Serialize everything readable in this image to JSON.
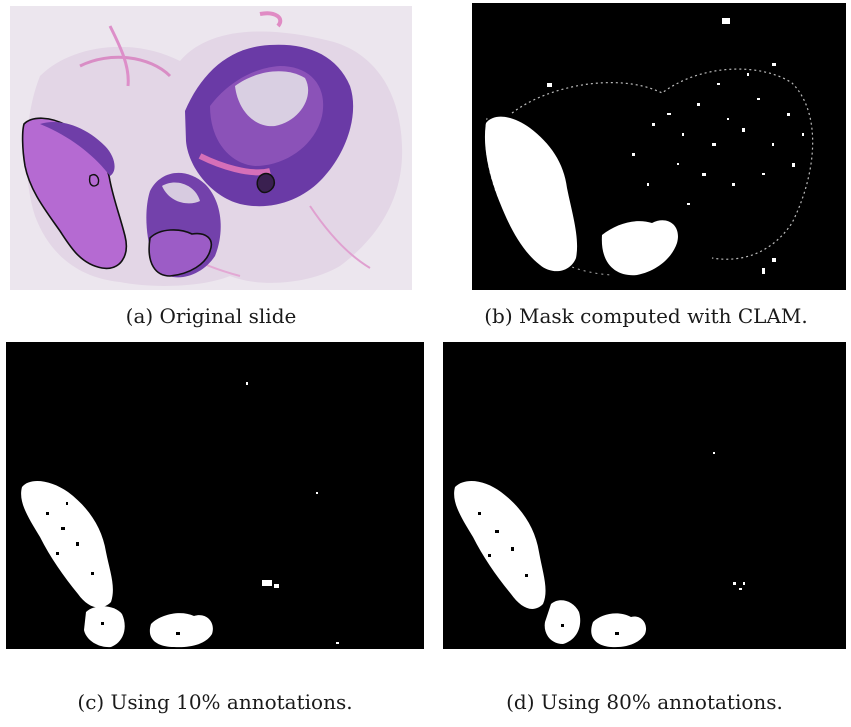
{
  "figure": {
    "panels": [
      {
        "id": "a",
        "caption": "(a) Original slide",
        "kind": "he-stained-whole-slide-image"
      },
      {
        "id": "b",
        "caption": "(b) Mask computed with CLAM.",
        "kind": "binary-tissue-mask"
      },
      {
        "id": "c",
        "caption": "(c) Using 10% annotations.",
        "kind": "binary-tumor-prediction-mask"
      },
      {
        "id": "d",
        "caption": "(d) Using 80% annotations.",
        "kind": "binary-tumor-prediction-mask"
      }
    ],
    "colors": {
      "slide_background": "#ece6ee",
      "tissue_pink": "#d88fc6",
      "tissue_purple": "#6a3aa6",
      "tumor_magenta": "#b56ad2",
      "annotation_outline": "#111111",
      "mask_background": "#000000",
      "mask_foreground": "#ffffff"
    }
  }
}
